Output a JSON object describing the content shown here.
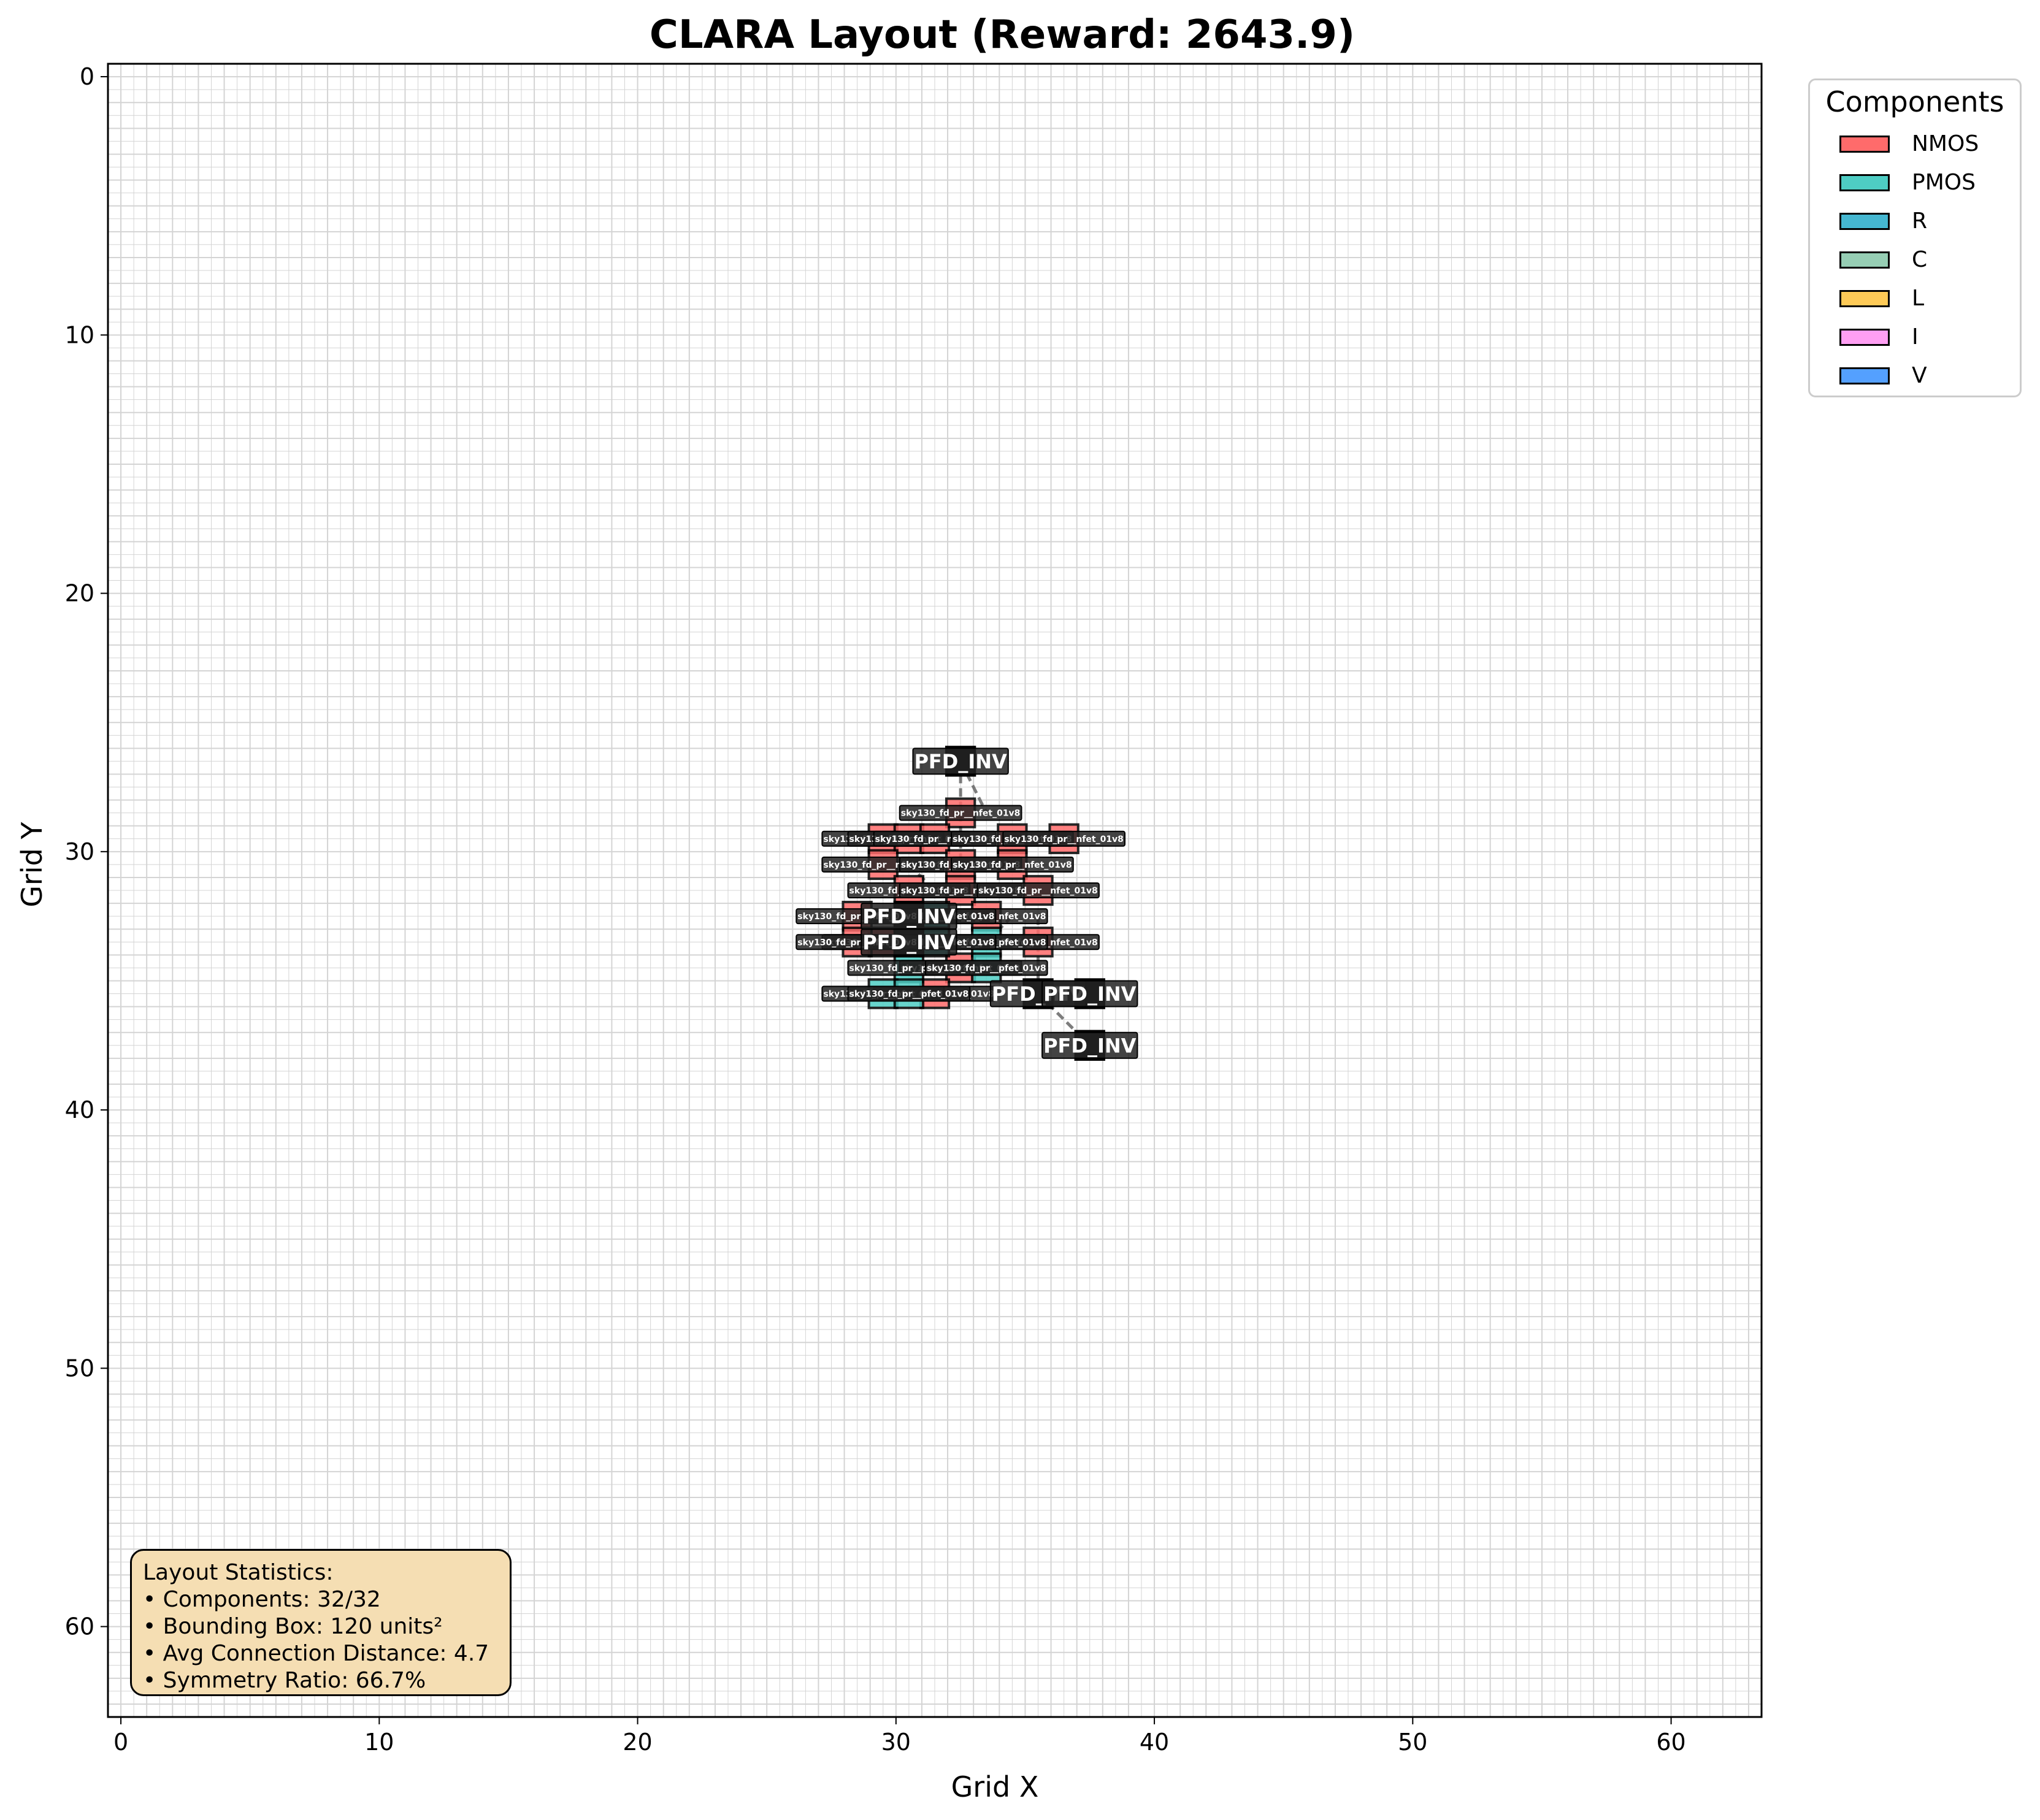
{
  "chart_data": {
    "type": "scatter",
    "title": "CLARA Layout (Reward: 2643.9)",
    "xlabel": "Grid X",
    "ylabel": "Grid Y",
    "xlim": [
      -0.5,
      63.5
    ],
    "ylim": [
      63.5,
      -0.5
    ],
    "xticks": [
      0,
      10,
      20,
      30,
      40,
      50,
      60
    ],
    "yticks": [
      0,
      10,
      20,
      30,
      40,
      50,
      60
    ],
    "grid": true,
    "y_axis_inverted": true,
    "legend": {
      "title": "Components",
      "placement": "outside-top-right",
      "entries": [
        {
          "name": "NMOS",
          "color": "#ff6b6b"
        },
        {
          "name": "PMOS",
          "color": "#4ecdc4"
        },
        {
          "name": "R",
          "color": "#45b7d1"
        },
        {
          "name": "C",
          "color": "#96ceb4"
        },
        {
          "name": "L",
          "color": "#feca57"
        },
        {
          "name": "I",
          "color": "#ff9ff3"
        },
        {
          "name": "V",
          "color": "#54a0ff"
        }
      ]
    },
    "components": [
      {
        "label": "PFD_INV",
        "type": "INV",
        "x": 32.5,
        "y": 26.5
      },
      {
        "label": "sky130_fd_pr__nfet_01v8",
        "type": "NMOS",
        "x": 32.5,
        "y": 28.5
      },
      {
        "label": "sky130_fd_pr__nfet_01v8",
        "type": "NMOS",
        "x": 29.5,
        "y": 29.5
      },
      {
        "label": "sky130_fd_pr__nfet_01v8",
        "type": "NMOS",
        "x": 30.5,
        "y": 29.5
      },
      {
        "label": "sky130_fd_pr__nfet_01v8",
        "type": "NMOS",
        "x": 31.5,
        "y": 29.5
      },
      {
        "label": "sky130_fd_pr__nfet_01v8",
        "type": "NMOS",
        "x": 34.5,
        "y": 29.5
      },
      {
        "label": "sky130_fd_pr__nfet_01v8",
        "type": "NMOS",
        "x": 36.5,
        "y": 29.5
      },
      {
        "label": "sky130_fd_pr__nfet_01v8",
        "type": "NMOS",
        "x": 29.5,
        "y": 30.5
      },
      {
        "label": "sky130_fd_pr__nfet_01v8",
        "type": "NMOS",
        "x": 32.5,
        "y": 30.5
      },
      {
        "label": "sky130_fd_pr__nfet_01v8",
        "type": "NMOS",
        "x": 34.5,
        "y": 30.5
      },
      {
        "label": "sky130_fd_pr__nfet_01v8",
        "type": "NMOS",
        "x": 30.5,
        "y": 31.5
      },
      {
        "label": "sky130_fd_pr__nfet_01v8",
        "type": "NMOS",
        "x": 32.5,
        "y": 31.5
      },
      {
        "label": "sky130_fd_pr__nfet_01v8",
        "type": "NMOS",
        "x": 35.5,
        "y": 31.5
      },
      {
        "label": "sky130_fd_pr__nfet_01v8",
        "type": "NMOS",
        "x": 33.5,
        "y": 32.5
      },
      {
        "label": "sky130_fd_pr__nfet_01v8",
        "type": "NMOS",
        "x": 29.5,
        "y": 33.5
      },
      {
        "label": "sky130_fd_pr__nfet_01v8",
        "type": "NMOS",
        "x": 35.5,
        "y": 33.5
      },
      {
        "label": "sky130_fd_pr__nfet_01v8",
        "type": "NMOS",
        "x": 32.5,
        "y": 34.5
      },
      {
        "label": "sky130_fd_pr__nfet_01v8",
        "type": "NMOS",
        "x": 31.5,
        "y": 35.5
      },
      {
        "label": "sky130_fd_pr__pfet_01v8",
        "type": "PMOS",
        "x": 31.5,
        "y": 32.5
      },
      {
        "label": "sky130_fd_pr__pfet_01v8",
        "type": "PMOS",
        "x": 33.5,
        "y": 33.5
      },
      {
        "label": "sky130_fd_pr__pfet_01v8",
        "type": "PMOS",
        "x": 30.5,
        "y": 34.5
      },
      {
        "label": "sky130_fd_pr__pfet_01v8",
        "type": "PMOS",
        "x": 29.5,
        "y": 35.5
      },
      {
        "label": "sky130_fd_pr__pfet_01v8",
        "type": "PMOS",
        "x": 30.5,
        "y": 35.5
      },
      {
        "label": "sky130_fd_pr__pfet_01v8",
        "type": "PMOS",
        "x": 33.5,
        "y": 34.5
      },
      {
        "label": "sky130_fd_pr__pfet_01v8",
        "type": "PMOS",
        "x": 31.5,
        "y": 33.5
      },
      {
        "label": "sky130_fd_pr__nfet_01v8",
        "type": "NMOS",
        "x": 28.5,
        "y": 32.5
      },
      {
        "label": "sky130_fd_pr__nfet_01v8",
        "type": "NMOS",
        "x": 28.5,
        "y": 33.5
      },
      {
        "label": "PFD_INV",
        "type": "INV",
        "x": 30.5,
        "y": 32.5
      },
      {
        "label": "PFD_INV",
        "type": "INV",
        "x": 30.5,
        "y": 33.5
      },
      {
        "label": "PFD_INV",
        "type": "INV",
        "x": 35.5,
        "y": 35.5
      },
      {
        "label": "PFD_INV",
        "type": "INV",
        "x": 37.5,
        "y": 35.5
      },
      {
        "label": "PFD_INV",
        "type": "INV",
        "x": 37.5,
        "y": 37.5
      }
    ],
    "connections": [
      [
        32.5,
        26.5,
        32.5,
        28.5
      ],
      [
        32.5,
        26.5,
        33.5,
        28.5
      ],
      [
        32.5,
        28.5,
        32.5,
        30.5
      ],
      [
        35.5,
        32.5,
        35.5,
        35.5
      ],
      [
        35.5,
        35.5,
        37.5,
        37.5
      ],
      [
        34.5,
        32.5,
        33.5,
        33.5
      ],
      [
        30.5,
        30.5,
        31.5,
        31.5
      ]
    ]
  },
  "stats": {
    "title": "Layout Statistics:",
    "lines": [
      "• Components: 32/32",
      "• Bounding Box: 120 units²",
      "• Avg Connection Distance: 4.7",
      "• Symmetry Ratio: 66.7%"
    ]
  }
}
